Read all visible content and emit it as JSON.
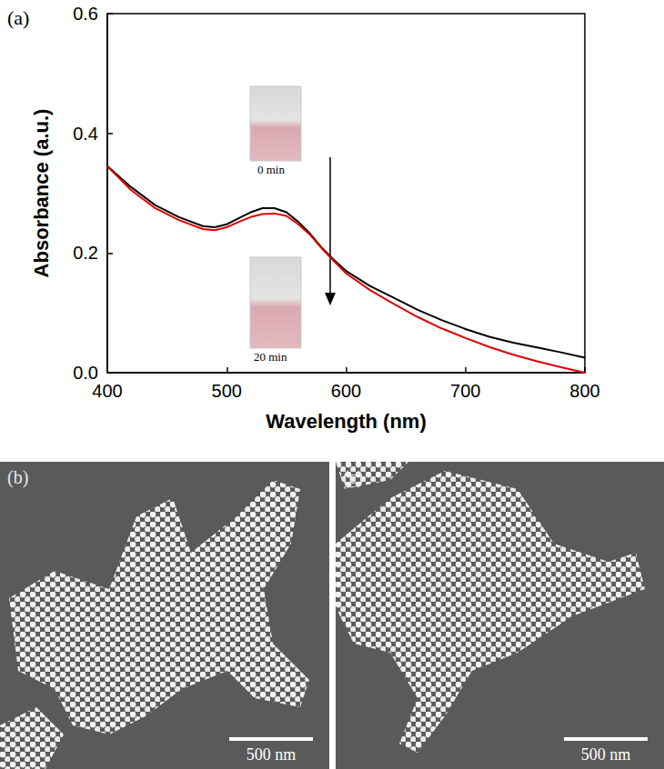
{
  "chart_data": {
    "type": "line",
    "panel_label": "(a)",
    "x_label": "Wavelength (nm)",
    "y_label": "Absorbance (a.u.)",
    "x": [
      400,
      420,
      440,
      460,
      480,
      490,
      500,
      510,
      520,
      530,
      540,
      550,
      560,
      570,
      580,
      590,
      600,
      620,
      640,
      660,
      680,
      700,
      720,
      740,
      760,
      780,
      800
    ],
    "series": [
      {
        "color": "#000000",
        "values": [
          0.345,
          0.31,
          0.28,
          0.26,
          0.245,
          0.243,
          0.248,
          0.258,
          0.268,
          0.275,
          0.275,
          0.268,
          0.252,
          0.232,
          0.208,
          0.188,
          0.17,
          0.145,
          0.125,
          0.105,
          0.088,
          0.073,
          0.06,
          0.05,
          0.042,
          0.034,
          0.025
        ]
      },
      {
        "color": "#e00000",
        "values": [
          0.345,
          0.305,
          0.275,
          0.255,
          0.24,
          0.238,
          0.243,
          0.252,
          0.26,
          0.265,
          0.266,
          0.262,
          0.248,
          0.23,
          0.207,
          0.186,
          0.166,
          0.138,
          0.115,
          0.093,
          0.074,
          0.058,
          0.043,
          0.03,
          0.019,
          0.009,
          0.0
        ]
      }
    ],
    "xlim": [
      400,
      800
    ],
    "xticks": [
      400,
      500,
      600,
      700,
      800
    ],
    "ylim": [
      0,
      0.6
    ],
    "yticks": [
      {
        "value": 0,
        "label": "0.0"
      },
      0.2,
      0.4,
      0.6
    ],
    "grid": false,
    "annotations": [
      {
        "text": "0 min"
      },
      {
        "text": "20 min"
      }
    ]
  },
  "images": [
    {
      "label": "(b)",
      "scale_bar": "500 nm"
    },
    {
      "label": "(c)",
      "scale_bar": "500 nm"
    }
  ]
}
